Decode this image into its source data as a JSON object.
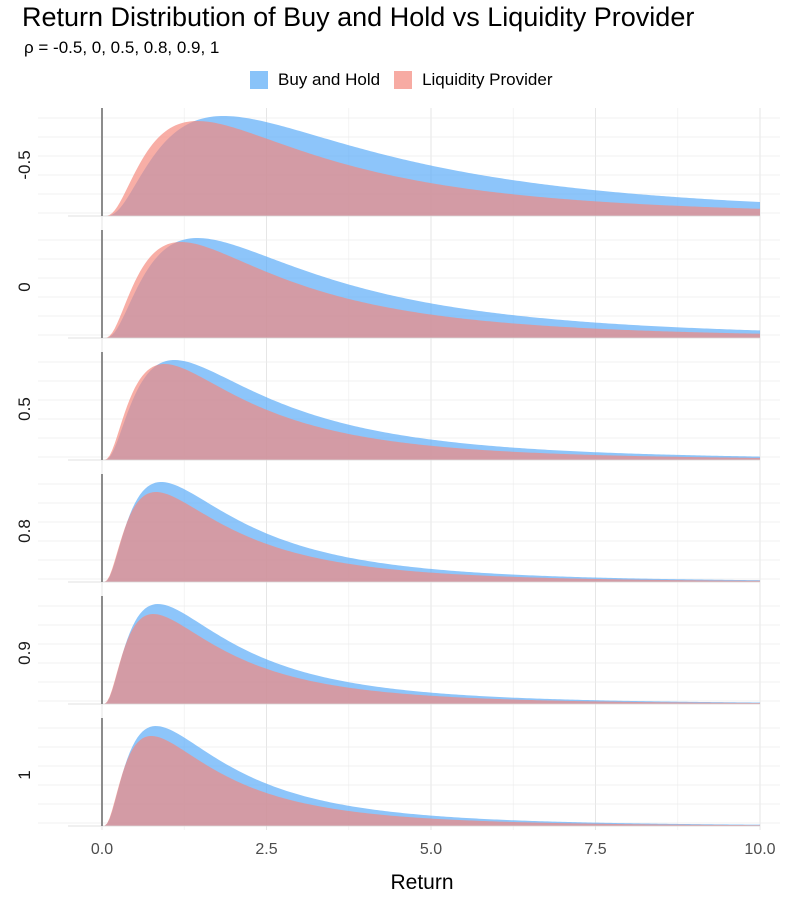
{
  "title": "Return Distribution of Buy and Hold vs Liquidity Provider",
  "subtitle": "ρ = -0.5,  0,  0.5,  0.8,  0.9,  1",
  "colors": {
    "buy_and_hold": "#57A9F7",
    "liquidity_provider": "#F4887C"
  },
  "chart_data": {
    "type": "area",
    "xlabel": "Return",
    "ylabel": "",
    "xlim": [
      0,
      10
    ],
    "x_ticks": [
      "0.0",
      "2.5",
      "5.0",
      "7.5",
      "10.0"
    ],
    "x_tick_values": [
      0,
      2.5,
      5,
      7.5,
      10
    ],
    "grid": true,
    "legend_position": "top",
    "legend": [
      "Buy and Hold",
      "Liquidity Provider"
    ],
    "panel_labels": [
      "-0.5",
      "0",
      "0.5",
      "0.8",
      "0.9",
      "1"
    ],
    "panels": [
      {
        "rho": "-0.5",
        "series": [
          {
            "name": "Buy and Hold",
            "mode": 1.85,
            "peak": 1.0
          },
          {
            "name": "Liquidity Provider",
            "mode": 1.45,
            "peak": 0.95
          }
        ]
      },
      {
        "rho": "0",
        "series": [
          {
            "name": "Buy and Hold",
            "mode": 1.45,
            "peak": 1.0
          },
          {
            "name": "Liquidity Provider",
            "mode": 1.2,
            "peak": 0.96
          }
        ]
      },
      {
        "rho": "0.5",
        "series": [
          {
            "name": "Buy and Hold",
            "mode": 1.1,
            "peak": 1.0
          },
          {
            "name": "Liquidity Provider",
            "mode": 0.95,
            "peak": 0.96
          }
        ]
      },
      {
        "rho": "0.8",
        "series": [
          {
            "name": "Buy and Hold",
            "mode": 0.9,
            "peak": 1.0
          },
          {
            "name": "Liquidity Provider",
            "mode": 0.82,
            "peak": 0.9
          }
        ]
      },
      {
        "rho": "0.9",
        "series": [
          {
            "name": "Buy and Hold",
            "mode": 0.85,
            "peak": 1.0
          },
          {
            "name": "Liquidity Provider",
            "mode": 0.78,
            "peak": 0.9
          }
        ]
      },
      {
        "rho": "1",
        "series": [
          {
            "name": "Buy and Hold",
            "mode": 0.82,
            "peak": 1.0
          },
          {
            "name": "Liquidity Provider",
            "mode": 0.75,
            "peak": 0.9
          }
        ]
      }
    ]
  }
}
